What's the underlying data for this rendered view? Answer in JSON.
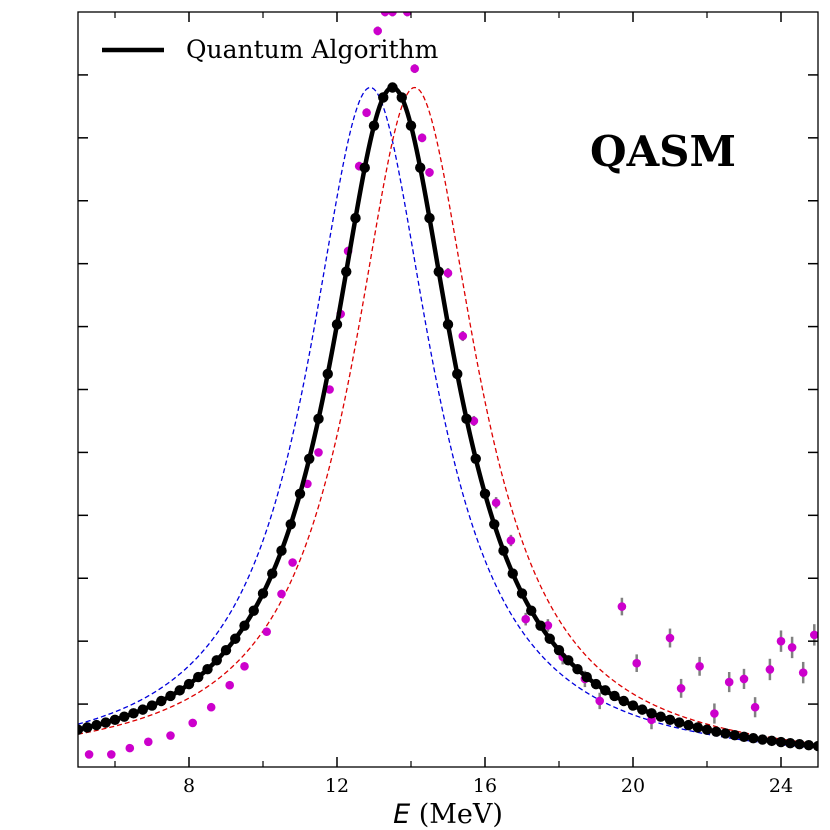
{
  "chart_data": {
    "type": "line",
    "title": "",
    "annotation": "QASM",
    "xlabel_symbol": "E",
    "xlabel_unit": " (MeV)",
    "ylabel": "",
    "xlim": [
      5,
      25
    ],
    "ylim": [
      0,
      1.2
    ],
    "xticks": [
      8,
      12,
      16,
      20,
      24
    ],
    "xtick_labels": [
      "8",
      "12",
      "16",
      "20",
      "24"
    ],
    "x_minor_ticks": [
      6,
      10,
      14,
      18,
      22
    ],
    "yticks": [
      0.1,
      0.2,
      0.3,
      0.4,
      0.5,
      0.6,
      0.7,
      0.8,
      0.9,
      1.0,
      1.1
    ],
    "grid": false,
    "legend_position": "top-left",
    "legend": [
      {
        "label": "Quantum Algorithm",
        "series": "Quantum Algorithm"
      }
    ],
    "series": [
      {
        "name": "Quantum Algorithm",
        "style": "solid-line-with-markers",
        "color": "#000000",
        "curve": {
          "shape": "lorentzian",
          "peak_x": 13.5,
          "peak_y": 1.08,
          "half_width": 2.05,
          "baseline": 0.0
        },
        "marker_x_start": 5.0,
        "marker_x_end": 25.0,
        "marker_step": 0.25
      },
      {
        "style": "dashed",
        "color": "#0000dd",
        "curve": {
          "shape": "lorentzian",
          "peak_x": 12.9,
          "peak_y": 1.08,
          "half_width": 2.05,
          "baseline": 0.0
        }
      },
      {
        "style": "dashed",
        "color": "#dd0000",
        "curve": {
          "shape": "lorentzian",
          "peak_x": 14.1,
          "peak_y": 1.08,
          "half_width": 2.05,
          "baseline": 0.0
        }
      },
      {
        "style": "markers-with-errorbars",
        "color": "#cc00cc",
        "errorbar_color": "#808080",
        "points": [
          [
            5.3,
            0.02,
            0.005
          ],
          [
            5.9,
            0.02,
            0.005
          ],
          [
            6.4,
            0.03,
            0.005
          ],
          [
            6.9,
            0.04,
            0.005
          ],
          [
            7.5,
            0.05,
            0.005
          ],
          [
            8.1,
            0.07,
            0.005
          ],
          [
            8.6,
            0.095,
            0.005
          ],
          [
            9.1,
            0.13,
            0.006
          ],
          [
            9.5,
            0.16,
            0.006
          ],
          [
            10.1,
            0.215,
            0.006
          ],
          [
            10.5,
            0.275,
            0.006
          ],
          [
            10.8,
            0.325,
            0.006
          ],
          [
            11.2,
            0.45,
            0.006
          ],
          [
            11.5,
            0.5,
            0.006
          ],
          [
            11.8,
            0.6,
            0.006
          ],
          [
            12.1,
            0.72,
            0.007
          ],
          [
            12.3,
            0.82,
            0.007
          ],
          [
            12.6,
            0.955,
            0.007
          ],
          [
            12.8,
            1.04,
            0.007
          ],
          [
            13.1,
            1.17,
            0.007
          ],
          [
            13.3,
            1.2,
            0.007
          ],
          [
            13.5,
            1.2,
            0.007
          ],
          [
            13.9,
            1.2,
            0.007
          ],
          [
            14.1,
            1.11,
            0.007
          ],
          [
            14.3,
            1.0,
            0.007
          ],
          [
            14.5,
            0.945,
            0.007
          ],
          [
            15.0,
            0.785,
            0.008
          ],
          [
            15.4,
            0.685,
            0.008
          ],
          [
            15.7,
            0.55,
            0.008
          ],
          [
            16.3,
            0.42,
            0.009
          ],
          [
            16.7,
            0.36,
            0.009
          ],
          [
            17.1,
            0.235,
            0.01
          ],
          [
            17.7,
            0.225,
            0.01
          ],
          [
            18.1,
            0.175,
            0.012
          ],
          [
            18.7,
            0.14,
            0.013
          ],
          [
            19.1,
            0.105,
            0.013
          ],
          [
            19.7,
            0.255,
            0.014
          ],
          [
            20.1,
            0.165,
            0.014
          ],
          [
            20.5,
            0.075,
            0.015
          ],
          [
            21.0,
            0.205,
            0.015
          ],
          [
            21.3,
            0.125,
            0.015
          ],
          [
            21.8,
            0.16,
            0.015
          ],
          [
            22.2,
            0.085,
            0.016
          ],
          [
            22.6,
            0.135,
            0.016
          ],
          [
            23.0,
            0.14,
            0.016
          ],
          [
            23.3,
            0.095,
            0.016
          ],
          [
            23.7,
            0.155,
            0.017
          ],
          [
            24.0,
            0.2,
            0.017
          ],
          [
            24.3,
            0.19,
            0.017
          ],
          [
            24.6,
            0.15,
            0.017
          ],
          [
            24.9,
            0.21,
            0.017
          ]
        ]
      }
    ]
  }
}
